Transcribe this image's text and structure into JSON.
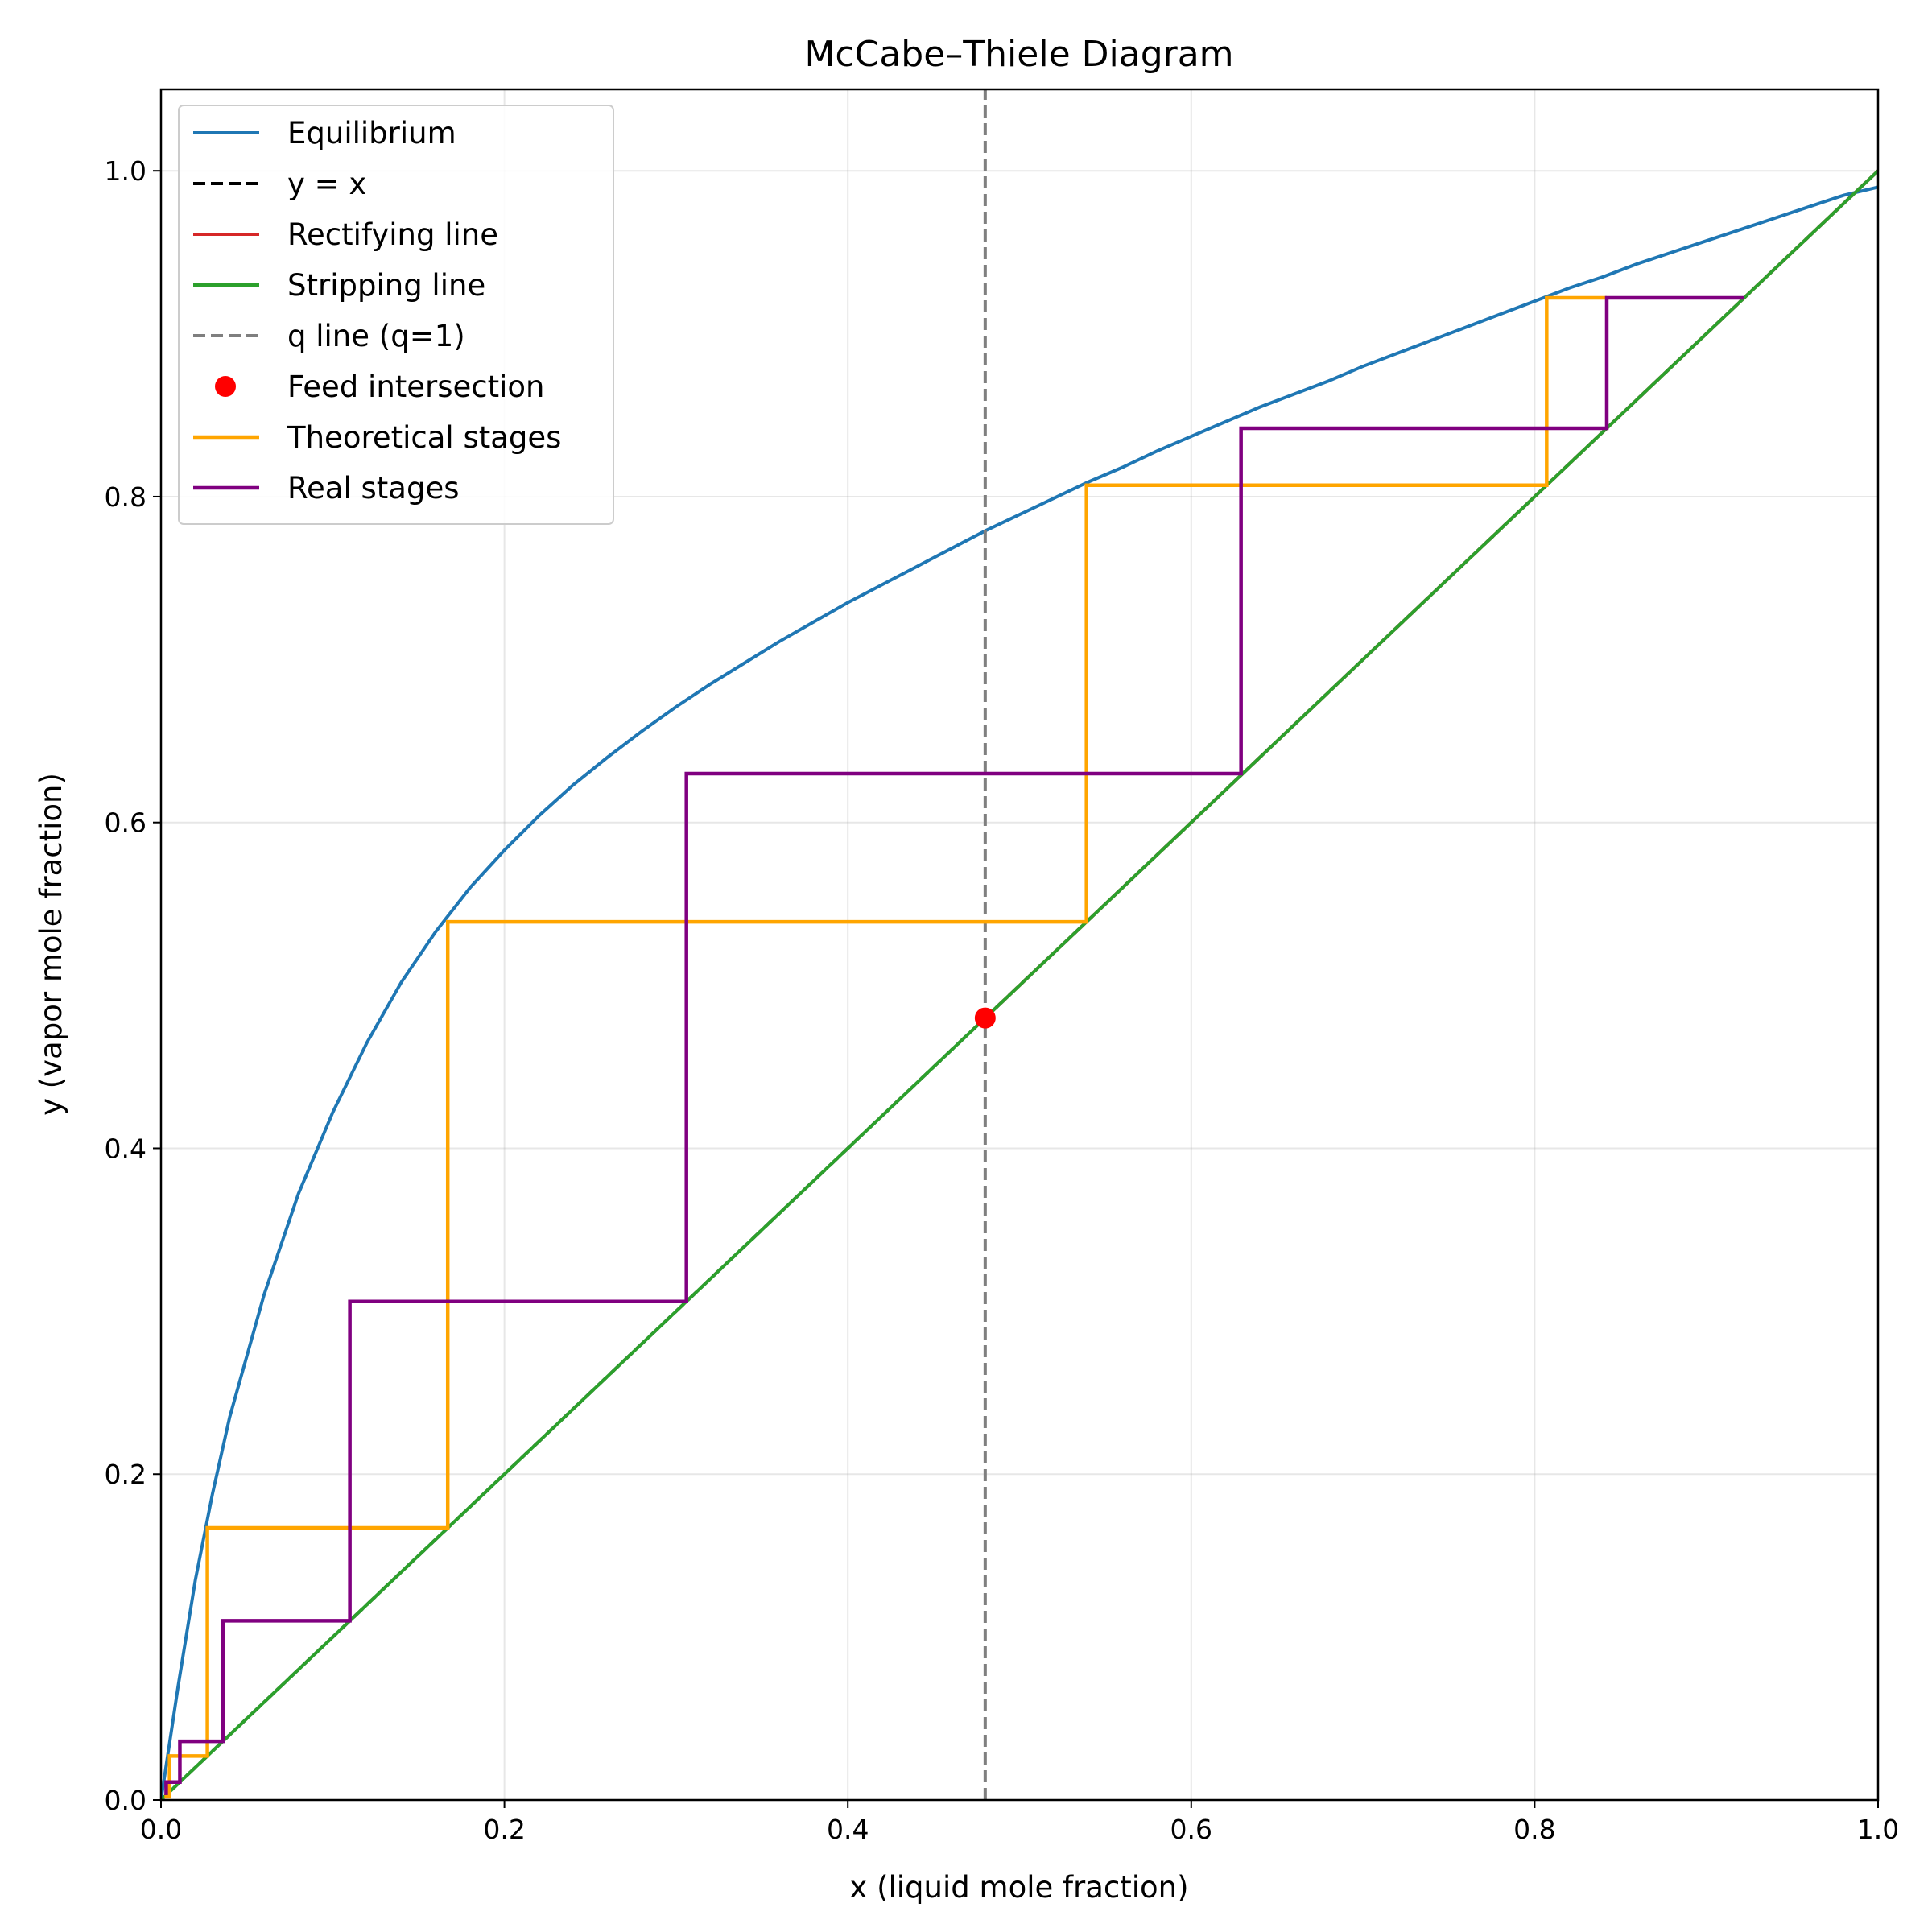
{
  "chart_data": {
    "type": "line",
    "title": "McCabe–Thiele Diagram",
    "xlabel": "x (liquid mole fraction)",
    "ylabel": "y (vapor mole fraction)",
    "xlim": [
      0,
      1
    ],
    "ylim": [
      0,
      1.05
    ],
    "grid": true,
    "legend_position": "top-left",
    "x_ticks": [
      0,
      0.2,
      0.4,
      0.6,
      0.8,
      1.0
    ],
    "x_tick_labels": [
      "0.0",
      "0.2",
      "0.4",
      "0.6",
      "0.8",
      "1.0"
    ],
    "y_ticks": [
      0,
      0.2,
      0.4,
      0.6,
      0.8,
      1.0
    ],
    "y_tick_labels": [
      "0.0",
      "0.2",
      "0.4",
      "0.6",
      "0.8",
      "1.0"
    ],
    "series": [
      {
        "name": "Equilibrium",
        "color": "#1f77b4",
        "style": "solid",
        "x": [
          0,
          0.01,
          0.02,
          0.03,
          0.04,
          0.06,
          0.08,
          0.1,
          0.12,
          0.14,
          0.16,
          0.18,
          0.2,
          0.22,
          0.24,
          0.26,
          0.28,
          0.3,
          0.32,
          0.34,
          0.36,
          0.38,
          0.4,
          0.42,
          0.44,
          0.46,
          0.48,
          0.5,
          0.52,
          0.54,
          0.56,
          0.58,
          0.6,
          0.62,
          0.64,
          0.66,
          0.68,
          0.7,
          0.72,
          0.74,
          0.76,
          0.78,
          0.8,
          0.82,
          0.84,
          0.86,
          0.88,
          0.9,
          0.92,
          0.94,
          0.96,
          0.98,
          1.0
        ],
        "y": [
          0,
          0.07,
          0.135,
          0.188,
          0.235,
          0.31,
          0.372,
          0.422,
          0.465,
          0.502,
          0.533,
          0.56,
          0.583,
          0.604,
          0.623,
          0.64,
          0.656,
          0.671,
          0.685,
          0.698,
          0.711,
          0.723,
          0.735,
          0.746,
          0.757,
          0.768,
          0.779,
          0.789,
          0.799,
          0.809,
          0.818,
          0.828,
          0.837,
          0.846,
          0.855,
          0.863,
          0.871,
          0.88,
          0.888,
          0.896,
          0.904,
          0.912,
          0.92,
          0.928,
          0.935,
          0.943,
          0.95,
          0.957,
          0.964,
          0.971,
          0.978,
          0.985,
          0.99
        ]
      },
      {
        "name": "y = x",
        "color": "#000000",
        "style": "dashed",
        "x": [
          0,
          1
        ],
        "y": [
          0,
          1
        ]
      },
      {
        "name": "Rectifying line",
        "color": "#d62728",
        "style": "solid",
        "x": [
          0.48,
          1.0
        ],
        "y": [
          0.48,
          1.0
        ]
      },
      {
        "name": "Stripping line",
        "color": "#2ca02c",
        "style": "solid",
        "x": [
          0.0,
          0.48,
          1.0
        ],
        "y": [
          0.0,
          0.48,
          1.0
        ]
      },
      {
        "name": "q line (q=1)",
        "color": "#7f7f7f",
        "style": "dashed",
        "x": [
          0.48,
          0.48
        ],
        "y": [
          0,
          1.05
        ]
      },
      {
        "name": "Feed intersection",
        "color": "#ff0000",
        "style": "marker",
        "x": [
          0.48
        ],
        "y": [
          0.48
        ]
      },
      {
        "name": "Theoretical stages",
        "color": "#ffa500",
        "style": "solid",
        "x": [
          0.002,
          0.005,
          0.005,
          0.027,
          0.027,
          0.167,
          0.167,
          0.539,
          0.539,
          0.807,
          0.807,
          0.842
        ],
        "y": [
          0.002,
          0.002,
          0.027,
          0.027,
          0.167,
          0.167,
          0.539,
          0.539,
          0.807,
          0.807,
          0.922,
          0.922
        ]
      },
      {
        "name": "Real stages",
        "color": "#800080",
        "style": "solid",
        "x": [
          0.003,
          0.003,
          0.011,
          0.011,
          0.036,
          0.036,
          0.11,
          0.11,
          0.306,
          0.306,
          0.629,
          0.629,
          0.842,
          0.842,
          0.922
        ],
        "y": [
          0.003,
          0.011,
          0.011,
          0.036,
          0.036,
          0.11,
          0.11,
          0.306,
          0.306,
          0.63,
          0.63,
          0.842,
          0.842,
          0.922,
          0.922
        ]
      }
    ]
  }
}
